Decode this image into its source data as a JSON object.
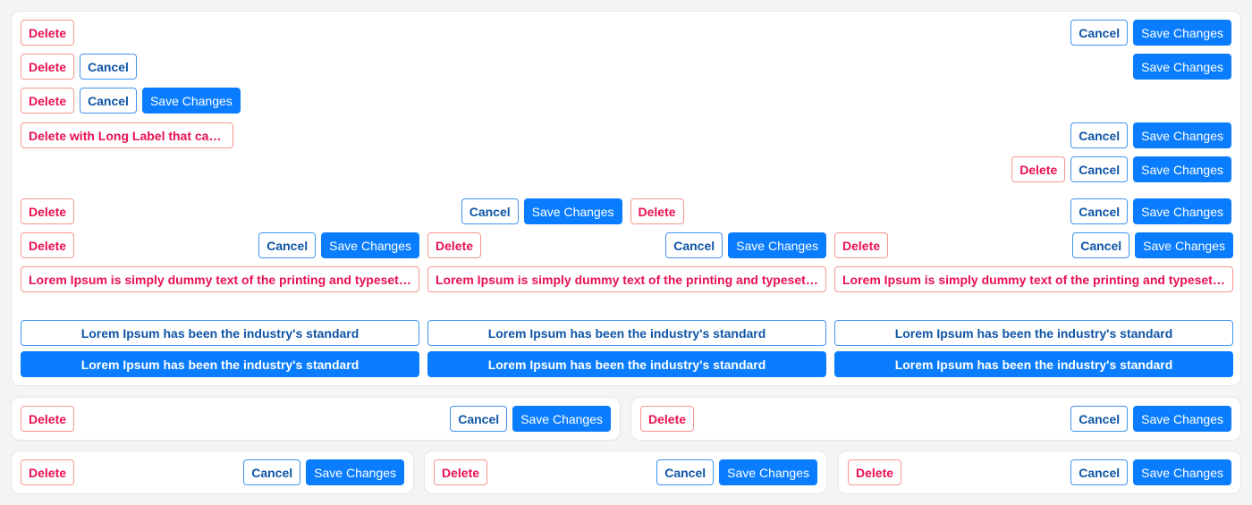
{
  "labels": {
    "delete": "Delete",
    "cancel": "Cancel",
    "save": "Save Changes",
    "long_delete": "Delete with Long Label that ca…",
    "lorem_long": "Lorem Ipsum is simply dummy text of the printing and typesetting industry",
    "lorem_standard": "Lorem Ipsum has been the industry's standard"
  },
  "colors": {
    "danger": "#ea1150",
    "danger_border": "#f5968d",
    "secondary": "#0e55a6",
    "primary": "#0a7dff"
  }
}
